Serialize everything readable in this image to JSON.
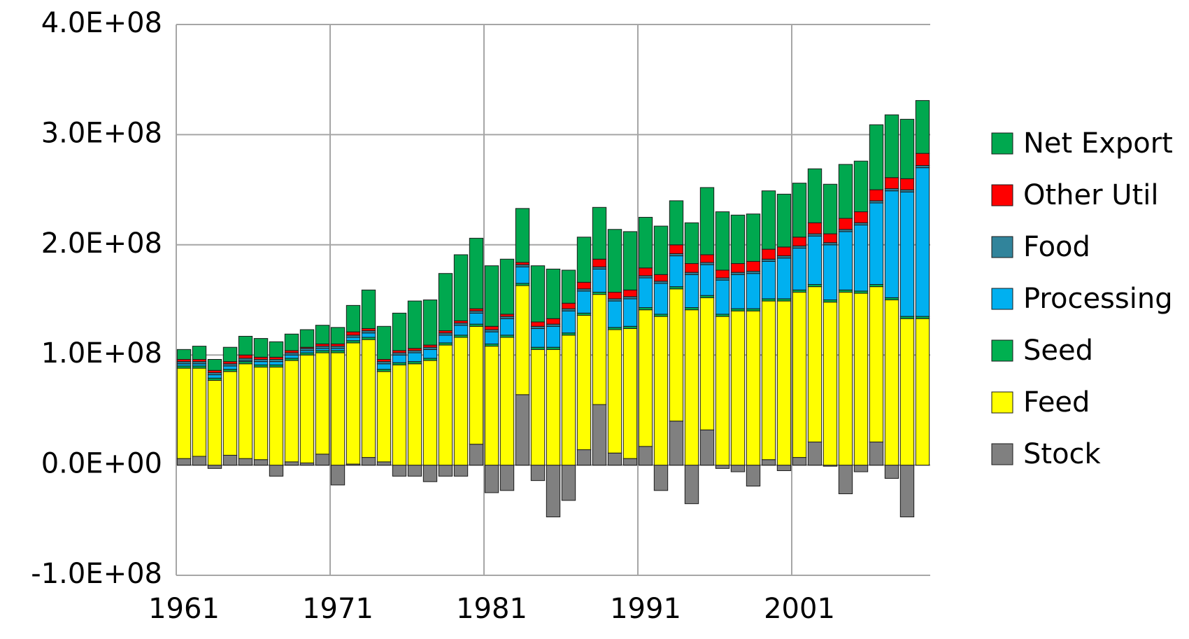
{
  "chart_data": {
    "type": "stacked_bar",
    "categories": [
      "1961",
      null,
      null,
      null,
      null,
      null,
      null,
      null,
      null,
      null,
      "1971",
      null,
      null,
      null,
      null,
      null,
      null,
      null,
      null,
      null,
      "1981",
      null,
      null,
      null,
      null,
      null,
      null,
      null,
      null,
      null,
      "1991",
      null,
      null,
      null,
      null,
      null,
      null,
      null,
      null,
      null,
      "2001",
      null,
      null,
      null,
      null,
      null,
      null,
      null,
      null
    ],
    "series": [
      {
        "name": "Stock",
        "color": "#808080",
        "values": [
          6000000.0,
          8000000.0,
          -3000000.0,
          9000000.0,
          6000000.0,
          5000000.0,
          -10000000.0,
          3000000.0,
          2000000.0,
          10000000.0,
          -18000000.0,
          1000000.0,
          7000000.0,
          3000000.0,
          -10000000.0,
          -10000000.0,
          -15000000.0,
          -10000000.0,
          -10000000.0,
          19000000.0,
          -25000000.0,
          -23000000.0,
          64000000.0,
          -14000000.0,
          -47000000.0,
          -32000000.0,
          14000000.0,
          55000000.0,
          11000000.0,
          6000000.0,
          17000000.0,
          -23000000.0,
          40000000.0,
          -35000000.0,
          32000000.0,
          -3000000.0,
          -6000000.0,
          -19000000.0,
          5000000.0,
          -5000000.0,
          7000000.0,
          21000000.0,
          -1000000.0,
          -26000000.0,
          -6000000.0,
          21000000.0,
          -12000000.0,
          -47000000.0,
          0
        ]
      },
      {
        "name": "Feed",
        "color": "#ffff00",
        "values": [
          82000000.0,
          80000000.0,
          77000000.0,
          76000000.0,
          86000000.0,
          84000000.0,
          89000000.0,
          92000000.0,
          98000000.0,
          92000000.0,
          102000000.0,
          110000000.0,
          107000000.0,
          82000000.0,
          91000000.0,
          92000000.0,
          95000000.0,
          109000000.0,
          116000000.0,
          107000000.0,
          108000000.0,
          116000000.0,
          99000000.0,
          105000000.0,
          105000000.0,
          118000000.0,
          122000000.0,
          100000000.0,
          112000000.0,
          118000000.0,
          124000000.0,
          135000000.0,
          120000000.0,
          141000000.0,
          120000000.0,
          135000000.0,
          140000000.0,
          140000000.0,
          144000000.0,
          149000000.0,
          150000000.0,
          141000000.0,
          148000000.0,
          157000000.0,
          156000000.0,
          141000000.0,
          150000000.0,
          133000000.0,
          133000000.0
        ]
      },
      {
        "name": "Seed",
        "color": "#00b050",
        "values": [
          2000000.0,
          2000000.0,
          2000000.0,
          2000000.0,
          2000000.0,
          2000000.0,
          2000000.0,
          2000000.0,
          2000000.0,
          2000000.0,
          2000000.0,
          2000000.0,
          2000000.0,
          2000000.0,
          2000000.0,
          2000000.0,
          2000000.0,
          2000000.0,
          2000000.0,
          2000000.0,
          2000000.0,
          2000000.0,
          2000000.0,
          2000000.0,
          2000000.0,
          2000000.0,
          2000000.0,
          2000000.0,
          2000000.0,
          2000000.0,
          2000000.0,
          2000000.0,
          2000000.0,
          2000000.0,
          2000000.0,
          2000000.0,
          2000000.0,
          2000000.0,
          2000000.0,
          2000000.0,
          2000000.0,
          2000000.0,
          2000000.0,
          2000000.0,
          2000000.0,
          2000000.0,
          2000000.0,
          2000000.0,
          2000000.0
        ]
      },
      {
        "name": "Processing",
        "color": "#00b0f0",
        "values": [
          2000000.0,
          2000000.0,
          3000000.0,
          3000000.0,
          1000000.0,
          3000000.0,
          3000000.0,
          3000000.0,
          2000000.0,
          2000000.0,
          2000000.0,
          3000000.0,
          4000000.0,
          5000000.0,
          7000000.0,
          8000000.0,
          8000000.0,
          7000000.0,
          9000000.0,
          10000000.0,
          11000000.0,
          15000000.0,
          15000000.0,
          17000000.0,
          19000000.0,
          20000000.0,
          20000000.0,
          21000000.0,
          24000000.0,
          25000000.0,
          27000000.0,
          28000000.0,
          28000000.0,
          30000000.0,
          28000000.0,
          31000000.0,
          31000000.0,
          32000000.0,
          34000000.0,
          37000000.0,
          38000000.0,
          44000000.0,
          50000000.0,
          53000000.0,
          60000000.0,
          74000000.0,
          97000000.0,
          113000000.0,
          135000000.0
        ]
      },
      {
        "name": "Food",
        "color": "#31849b",
        "values": [
          2000000.0,
          2000000.0,
          2000000.0,
          2000000.0,
          2000000.0,
          2000000.0,
          2000000.0,
          2000000.0,
          2000000.0,
          2000000.0,
          2000000.0,
          2000000.0,
          2000000.0,
          2000000.0,
          2000000.0,
          2000000.0,
          2000000.0,
          2000000.0,
          2000000.0,
          2000000.0,
          2000000.0,
          2000000.0,
          2000000.0,
          2000000.0,
          2000000.0,
          2000000.0,
          2000000.0,
          2000000.0,
          2000000.0,
          2000000.0,
          2000000.0,
          2000000.0,
          2000000.0,
          2000000.0,
          2000000.0,
          2000000.0,
          2000000.0,
          2000000.0,
          2000000.0,
          2000000.0,
          2000000.0,
          2000000.0,
          2000000.0,
          2000000.0,
          2000000.0,
          2000000.0,
          2000000.0,
          2000000.0,
          2000000.0
        ]
      },
      {
        "name": "Other Util",
        "color": "#ff0000",
        "values": [
          2000000.0,
          2000000.0,
          2000000.0,
          2000000.0,
          3000000.0,
          2000000.0,
          2000000.0,
          2000000.0,
          1000000.0,
          2000000.0,
          2000000.0,
          3000000.0,
          2000000.0,
          2000000.0,
          2000000.0,
          2000000.0,
          2000000.0,
          2000000.0,
          2000000.0,
          2000000.0,
          3000000.0,
          2000000.0,
          2000000.0,
          4000000.0,
          5000000.0,
          5000000.0,
          6000000.0,
          7000000.0,
          6000000.0,
          6000000.0,
          7000000.0,
          6000000.0,
          8000000.0,
          8000000.0,
          7000000.0,
          7000000.0,
          8000000.0,
          9000000.0,
          9000000.0,
          8000000.0,
          8000000.0,
          10000000.0,
          8000000.0,
          10000000.0,
          10000000.0,
          10000000.0,
          10000000.0,
          10000000.0,
          11000000.0
        ]
      },
      {
        "name": "Net Export",
        "color": "#00a84f",
        "values": [
          9000000.0,
          12000000.0,
          10000000.0,
          13000000.0,
          17000000.0,
          17000000.0,
          14000000.0,
          15000000.0,
          16000000.0,
          17000000.0,
          15000000.0,
          24000000.0,
          35000000.0,
          30000000.0,
          34000000.0,
          43000000.0,
          41000000.0,
          52000000.0,
          60000000.0,
          64000000.0,
          55000000.0,
          50000000.0,
          49000000.0,
          51000000.0,
          45000000.0,
          30000000.0,
          41000000.0,
          47000000.0,
          57000000.0,
          53000000.0,
          46000000.0,
          44000000.0,
          40000000.0,
          37000000.0,
          61000000.0,
          53000000.0,
          44000000.0,
          43000000.0,
          53000000.0,
          48000000.0,
          49000000.0,
          49000000.0,
          45000000.0,
          49000000.0,
          46000000.0,
          59000000.0,
          57000000.0,
          54000000.0,
          48000000.0
        ]
      }
    ],
    "ylim": [
      -100000000,
      400000000
    ],
    "yticks": [
      {
        "value": -100000000,
        "label": "-1.0E+08"
      },
      {
        "value": 0,
        "label": "0.0E+00"
      },
      {
        "value": 100000000,
        "label": "1.0E+08"
      },
      {
        "value": 200000000,
        "label": "2.0E+08"
      },
      {
        "value": 300000000,
        "label": "3.0E+08"
      },
      {
        "value": 400000000,
        "label": "4.0E+08"
      }
    ],
    "grid": true,
    "legend": "right"
  }
}
